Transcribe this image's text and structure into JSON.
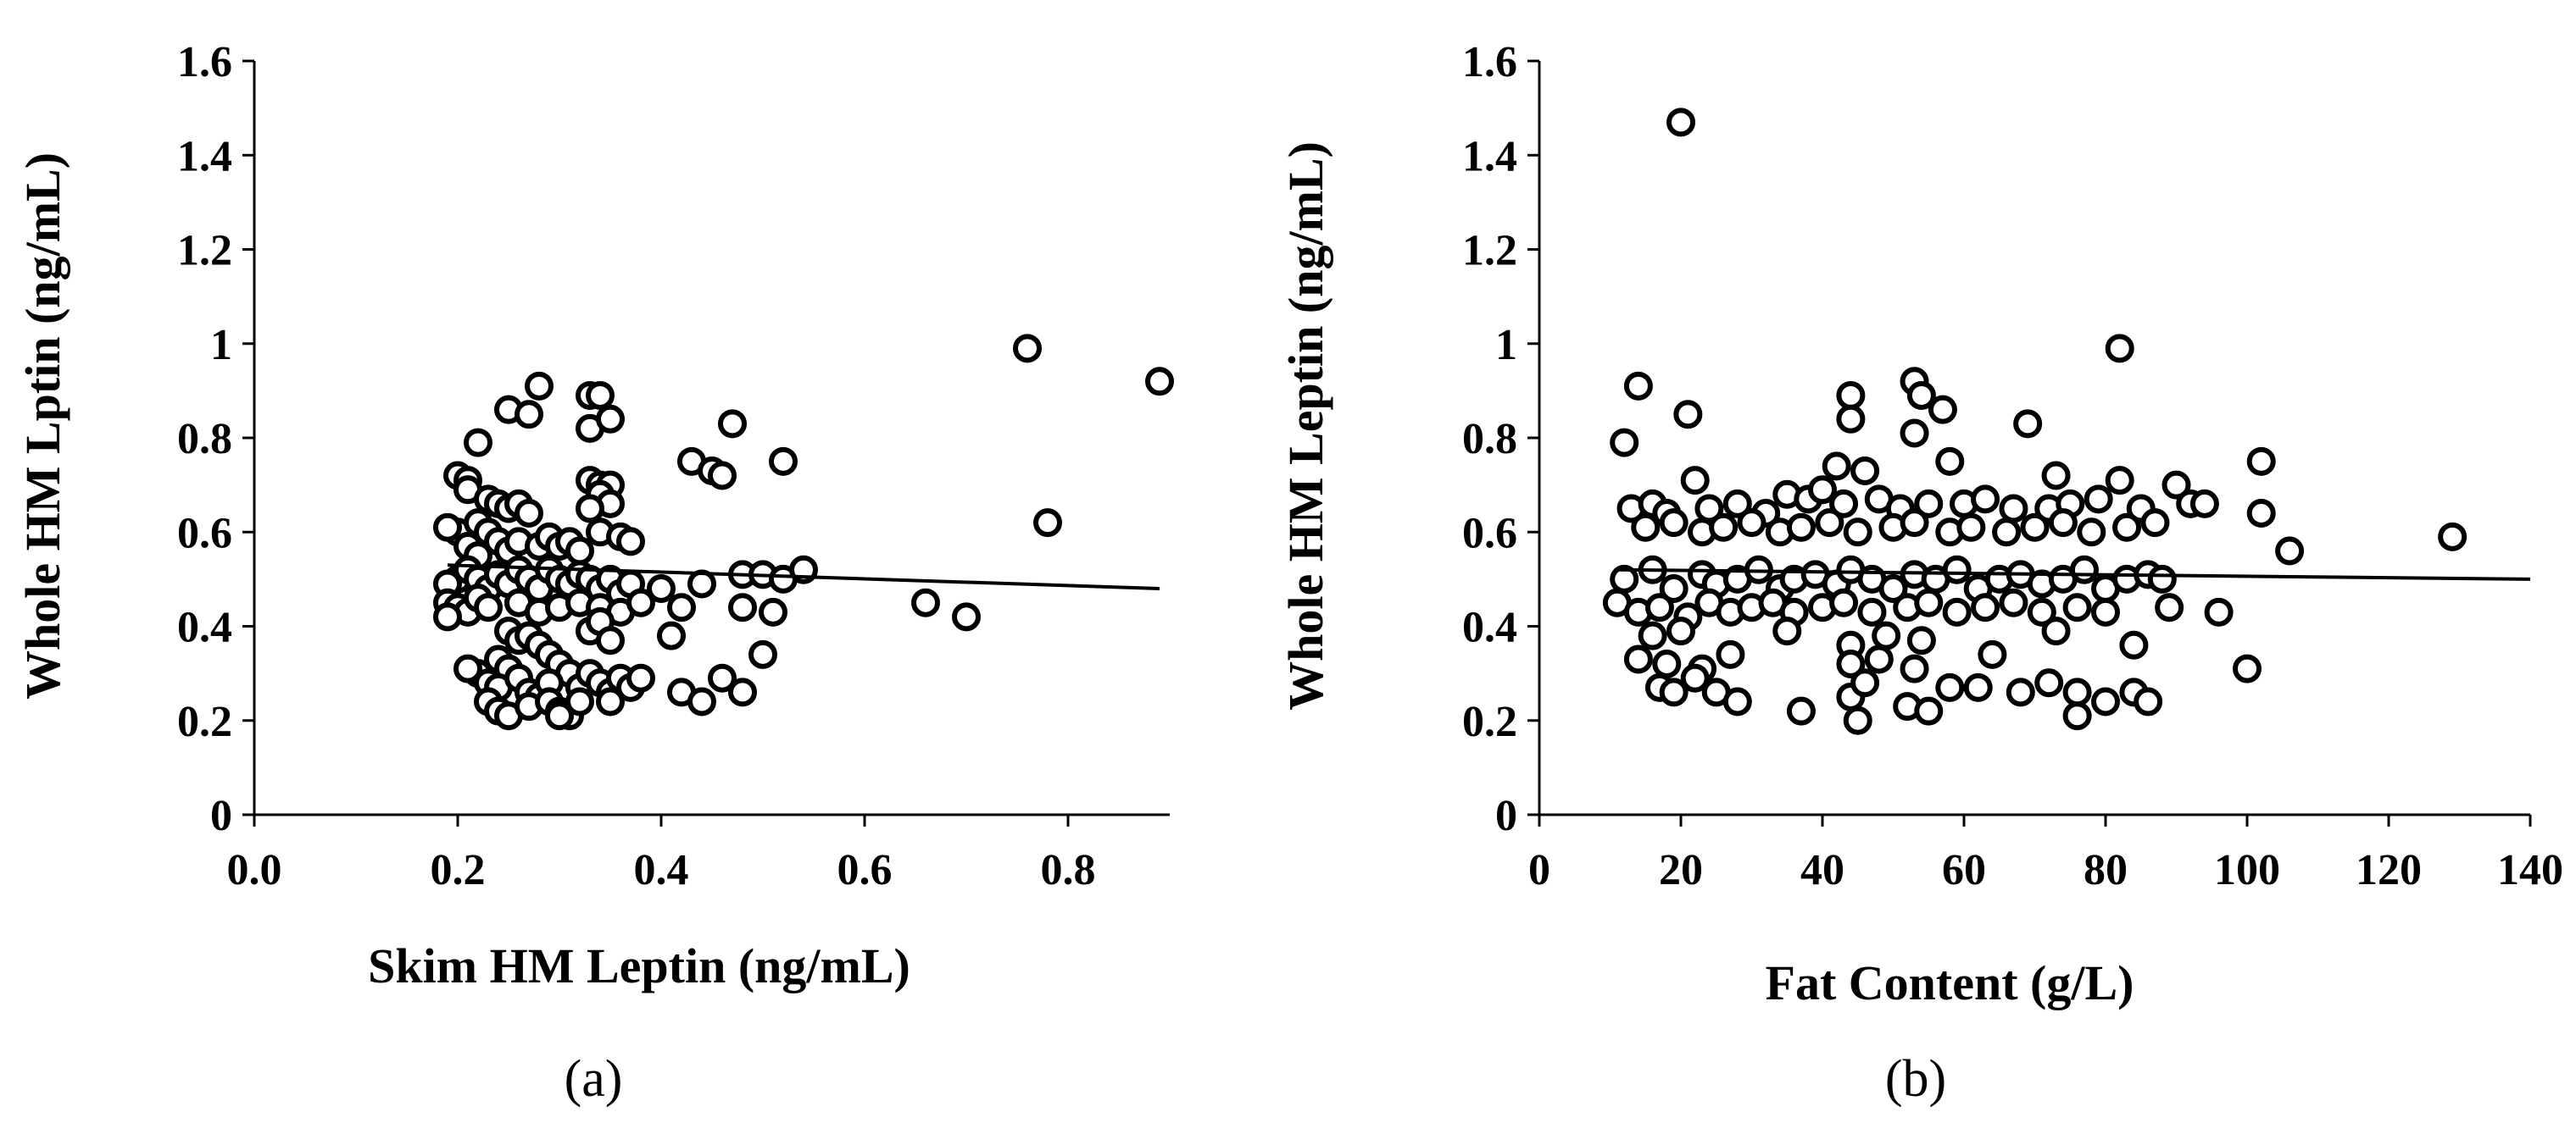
{
  "chart_data": [
    {
      "type": "scatter",
      "panel_label": "(a)",
      "xlabel": "Skim HM Leptin (ng/mL)",
      "ylabel": "Whole HM Lptin (ng/mL)",
      "xlim": [
        0,
        0.9
      ],
      "ylim": [
        0,
        1.6
      ],
      "xticks": [
        "0.0",
        "0.2",
        "0.4",
        "0.6",
        "0.8"
      ],
      "xtick_values": [
        0,
        0.2,
        0.4,
        0.6,
        0.8
      ],
      "yticks": [
        "0",
        "0.2",
        "0.4",
        "0.6",
        "0.8",
        "1",
        "1.2",
        "1.4",
        "1.6"
      ],
      "ytick_values": [
        0,
        0.2,
        0.4,
        0.6,
        0.8,
        1.0,
        1.2,
        1.4,
        1.6
      ],
      "trendline": {
        "x": [
          0.19,
          0.89
        ],
        "y": [
          0.53,
          0.48
        ]
      },
      "points": [
        [
          0.76,
          0.99
        ],
        [
          0.89,
          0.92
        ],
        [
          0.78,
          0.62
        ],
        [
          0.66,
          0.45
        ],
        [
          0.7,
          0.42
        ],
        [
          0.28,
          0.91
        ],
        [
          0.25,
          0.86
        ],
        [
          0.27,
          0.85
        ],
        [
          0.33,
          0.89
        ],
        [
          0.34,
          0.89
        ],
        [
          0.33,
          0.82
        ],
        [
          0.35,
          0.84
        ],
        [
          0.47,
          0.83
        ],
        [
          0.22,
          0.79
        ],
        [
          0.43,
          0.75
        ],
        [
          0.45,
          0.73
        ],
        [
          0.46,
          0.72
        ],
        [
          0.52,
          0.75
        ],
        [
          0.2,
          0.72
        ],
        [
          0.21,
          0.71
        ],
        [
          0.21,
          0.69
        ],
        [
          0.23,
          0.67
        ],
        [
          0.24,
          0.66
        ],
        [
          0.25,
          0.65
        ],
        [
          0.26,
          0.66
        ],
        [
          0.27,
          0.64
        ],
        [
          0.33,
          0.71
        ],
        [
          0.34,
          0.7
        ],
        [
          0.35,
          0.7
        ],
        [
          0.34,
          0.68
        ],
        [
          0.35,
          0.66
        ],
        [
          0.33,
          0.65
        ],
        [
          0.2,
          0.6
        ],
        [
          0.19,
          0.61
        ],
        [
          0.22,
          0.62
        ],
        [
          0.23,
          0.6
        ],
        [
          0.24,
          0.58
        ],
        [
          0.21,
          0.57
        ],
        [
          0.22,
          0.55
        ],
        [
          0.25,
          0.56
        ],
        [
          0.26,
          0.58
        ],
        [
          0.28,
          0.57
        ],
        [
          0.29,
          0.59
        ],
        [
          0.3,
          0.57
        ],
        [
          0.31,
          0.58
        ],
        [
          0.32,
          0.56
        ],
        [
          0.34,
          0.6
        ],
        [
          0.36,
          0.59
        ],
        [
          0.37,
          0.58
        ],
        [
          0.2,
          0.5
        ],
        [
          0.19,
          0.49
        ],
        [
          0.21,
          0.52
        ],
        [
          0.22,
          0.5
        ],
        [
          0.23,
          0.48
        ],
        [
          0.24,
          0.51
        ],
        [
          0.25,
          0.49
        ],
        [
          0.26,
          0.52
        ],
        [
          0.27,
          0.5
        ],
        [
          0.28,
          0.48
        ],
        [
          0.29,
          0.52
        ],
        [
          0.3,
          0.5
        ],
        [
          0.31,
          0.49
        ],
        [
          0.32,
          0.51
        ],
        [
          0.33,
          0.5
        ],
        [
          0.34,
          0.48
        ],
        [
          0.35,
          0.5
        ],
        [
          0.36,
          0.47
        ],
        [
          0.37,
          0.49
        ],
        [
          0.19,
          0.45
        ],
        [
          0.2,
          0.44
        ],
        [
          0.21,
          0.43
        ],
        [
          0.22,
          0.46
        ],
        [
          0.23,
          0.44
        ],
        [
          0.19,
          0.42
        ],
        [
          0.26,
          0.45
        ],
        [
          0.28,
          0.43
        ],
        [
          0.3,
          0.44
        ],
        [
          0.32,
          0.45
        ],
        [
          0.34,
          0.44
        ],
        [
          0.36,
          0.43
        ],
        [
          0.38,
          0.45
        ],
        [
          0.4,
          0.48
        ],
        [
          0.42,
          0.44
        ],
        [
          0.44,
          0.49
        ],
        [
          0.48,
          0.51
        ],
        [
          0.5,
          0.51
        ],
        [
          0.52,
          0.5
        ],
        [
          0.54,
          0.52
        ],
        [
          0.48,
          0.44
        ],
        [
          0.51,
          0.43
        ],
        [
          0.41,
          0.38
        ],
        [
          0.25,
          0.39
        ],
        [
          0.26,
          0.37
        ],
        [
          0.27,
          0.38
        ],
        [
          0.28,
          0.36
        ],
        [
          0.29,
          0.34
        ],
        [
          0.33,
          0.39
        ],
        [
          0.34,
          0.41
        ],
        [
          0.35,
          0.37
        ],
        [
          0.24,
          0.33
        ],
        [
          0.25,
          0.31
        ],
        [
          0.3,
          0.32
        ],
        [
          0.31,
          0.3
        ],
        [
          0.22,
          0.3
        ],
        [
          0.21,
          0.31
        ],
        [
          0.23,
          0.28
        ],
        [
          0.24,
          0.27
        ],
        [
          0.26,
          0.29
        ],
        [
          0.27,
          0.26
        ],
        [
          0.28,
          0.25
        ],
        [
          0.29,
          0.28
        ],
        [
          0.32,
          0.27
        ],
        [
          0.33,
          0.3
        ],
        [
          0.34,
          0.28
        ],
        [
          0.35,
          0.26
        ],
        [
          0.36,
          0.29
        ],
        [
          0.37,
          0.27
        ],
        [
          0.38,
          0.29
        ],
        [
          0.23,
          0.24
        ],
        [
          0.24,
          0.22
        ],
        [
          0.25,
          0.21
        ],
        [
          0.27,
          0.23
        ],
        [
          0.29,
          0.24
        ],
        [
          0.3,
          0.22
        ],
        [
          0.31,
          0.21
        ],
        [
          0.32,
          0.24
        ],
        [
          0.35,
          0.24
        ],
        [
          0.42,
          0.26
        ],
        [
          0.44,
          0.24
        ],
        [
          0.46,
          0.29
        ],
        [
          0.48,
          0.26
        ],
        [
          0.5,
          0.34
        ],
        [
          0.3,
          0.21
        ]
      ]
    },
    {
      "type": "scatter",
      "panel_label": "(b)",
      "xlabel": "Fat Content  (g/L)",
      "ylabel": "Whole HM Leptin (ng/mL)",
      "xlim": [
        0,
        140
      ],
      "ylim": [
        0,
        1.6
      ],
      "xticks": [
        "0",
        "20",
        "40",
        "60",
        "80",
        "100",
        "120",
        "140"
      ],
      "xtick_values": [
        0,
        20,
        40,
        60,
        80,
        100,
        120,
        140
      ],
      "yticks": [
        "0",
        "0.2",
        "0.4",
        "0.6",
        "0.8",
        "1",
        "1.2",
        "1.4",
        "1.6"
      ],
      "ytick_values": [
        0,
        0.2,
        0.4,
        0.6,
        0.8,
        1.0,
        1.2,
        1.4,
        1.6
      ],
      "trendline": {
        "x": [
          11,
          140
        ],
        "y": [
          0.52,
          0.5
        ]
      },
      "points": [
        [
          20,
          1.47
        ],
        [
          82,
          0.99
        ],
        [
          14,
          0.91
        ],
        [
          53,
          0.92
        ],
        [
          54,
          0.89
        ],
        [
          44,
          0.89
        ],
        [
          21,
          0.85
        ],
        [
          57,
          0.86
        ],
        [
          44,
          0.84
        ],
        [
          69,
          0.83
        ],
        [
          12,
          0.79
        ],
        [
          53,
          0.81
        ],
        [
          58,
          0.75
        ],
        [
          102,
          0.75
        ],
        [
          22,
          0.71
        ],
        [
          42,
          0.74
        ],
        [
          46,
          0.73
        ],
        [
          73,
          0.72
        ],
        [
          82,
          0.71
        ],
        [
          90,
          0.7
        ],
        [
          13,
          0.65
        ],
        [
          16,
          0.66
        ],
        [
          18,
          0.64
        ],
        [
          24,
          0.65
        ],
        [
          28,
          0.66
        ],
        [
          32,
          0.64
        ],
        [
          35,
          0.68
        ],
        [
          38,
          0.67
        ],
        [
          40,
          0.69
        ],
        [
          43,
          0.66
        ],
        [
          48,
          0.67
        ],
        [
          51,
          0.65
        ],
        [
          55,
          0.66
        ],
        [
          60,
          0.66
        ],
        [
          63,
          0.67
        ],
        [
          67,
          0.65
        ],
        [
          72,
          0.65
        ],
        [
          75,
          0.66
        ],
        [
          79,
          0.67
        ],
        [
          85,
          0.65
        ],
        [
          92,
          0.66
        ],
        [
          94,
          0.66
        ],
        [
          102,
          0.64
        ],
        [
          15,
          0.61
        ],
        [
          19,
          0.62
        ],
        [
          23,
          0.6
        ],
        [
          26,
          0.61
        ],
        [
          30,
          0.62
        ],
        [
          34,
          0.6
        ],
        [
          37,
          0.61
        ],
        [
          41,
          0.62
        ],
        [
          45,
          0.6
        ],
        [
          50,
          0.61
        ],
        [
          53,
          0.62
        ],
        [
          58,
          0.6
        ],
        [
          61,
          0.61
        ],
        [
          66,
          0.6
        ],
        [
          70,
          0.61
        ],
        [
          74,
          0.62
        ],
        [
          78,
          0.6
        ],
        [
          83,
          0.61
        ],
        [
          87,
          0.62
        ],
        [
          106,
          0.56
        ],
        [
          129,
          0.59
        ],
        [
          12,
          0.5
        ],
        [
          16,
          0.52
        ],
        [
          19,
          0.48
        ],
        [
          23,
          0.51
        ],
        [
          25,
          0.49
        ],
        [
          28,
          0.5
        ],
        [
          31,
          0.52
        ],
        [
          34,
          0.48
        ],
        [
          36,
          0.5
        ],
        [
          39,
          0.51
        ],
        [
          42,
          0.49
        ],
        [
          44,
          0.52
        ],
        [
          47,
          0.5
        ],
        [
          50,
          0.48
        ],
        [
          53,
          0.51
        ],
        [
          56,
          0.5
        ],
        [
          59,
          0.52
        ],
        [
          62,
          0.48
        ],
        [
          65,
          0.5
        ],
        [
          68,
          0.51
        ],
        [
          71,
          0.49
        ],
        [
          74,
          0.5
        ],
        [
          77,
          0.52
        ],
        [
          80,
          0.48
        ],
        [
          83,
          0.5
        ],
        [
          86,
          0.51
        ],
        [
          88,
          0.5
        ],
        [
          11,
          0.45
        ],
        [
          14,
          0.43
        ],
        [
          17,
          0.44
        ],
        [
          21,
          0.42
        ],
        [
          24,
          0.45
        ],
        [
          27,
          0.43
        ],
        [
          30,
          0.44
        ],
        [
          33,
          0.45
        ],
        [
          36,
          0.43
        ],
        [
          40,
          0.44
        ],
        [
          43,
          0.45
        ],
        [
          47,
          0.43
        ],
        [
          52,
          0.44
        ],
        [
          55,
          0.45
        ],
        [
          59,
          0.43
        ],
        [
          63,
          0.44
        ],
        [
          67,
          0.45
        ],
        [
          71,
          0.43
        ],
        [
          76,
          0.44
        ],
        [
          80,
          0.43
        ],
        [
          89,
          0.44
        ],
        [
          96,
          0.43
        ],
        [
          16,
          0.38
        ],
        [
          20,
          0.39
        ],
        [
          35,
          0.39
        ],
        [
          44,
          0.36
        ],
        [
          49,
          0.38
        ],
        [
          54,
          0.37
        ],
        [
          73,
          0.39
        ],
        [
          84,
          0.36
        ],
        [
          14,
          0.33
        ],
        [
          18,
          0.32
        ],
        [
          23,
          0.31
        ],
        [
          27,
          0.34
        ],
        [
          44,
          0.32
        ],
        [
          48,
          0.33
        ],
        [
          53,
          0.31
        ],
        [
          64,
          0.34
        ],
        [
          100,
          0.31
        ],
        [
          17,
          0.27
        ],
        [
          19,
          0.26
        ],
        [
          22,
          0.29
        ],
        [
          25,
          0.26
        ],
        [
          28,
          0.24
        ],
        [
          37,
          0.22
        ],
        [
          44,
          0.25
        ],
        [
          46,
          0.28
        ],
        [
          52,
          0.23
        ],
        [
          55,
          0.22
        ],
        [
          58,
          0.27
        ],
        [
          62,
          0.27
        ],
        [
          68,
          0.26
        ],
        [
          72,
          0.28
        ],
        [
          76,
          0.26
        ],
        [
          80,
          0.24
        ],
        [
          84,
          0.26
        ],
        [
          86,
          0.24
        ],
        [
          45,
          0.2
        ],
        [
          76,
          0.21
        ]
      ]
    }
  ]
}
